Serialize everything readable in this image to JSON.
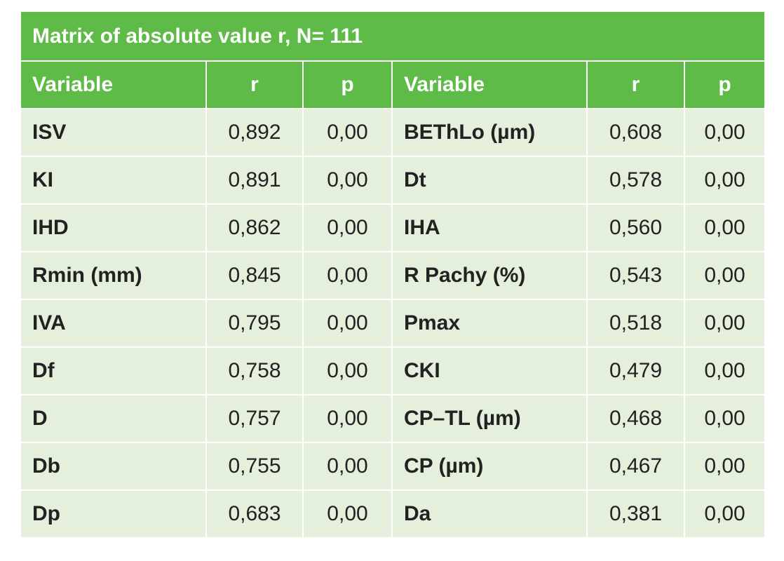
{
  "table": {
    "title": "Matrix of absolute value r, N= 111",
    "header": [
      "Variable",
      "r",
      "p",
      "Variable",
      "r",
      "p"
    ],
    "rows": [
      [
        "ISV",
        "0,892",
        "0,00",
        "BEThLo (µm)",
        "0,608",
        "0,00"
      ],
      [
        "KI",
        "0,891",
        "0,00",
        "Dt",
        "0,578",
        "0,00"
      ],
      [
        "IHD",
        "0,862",
        "0,00",
        "IHA",
        "0,560",
        "0,00"
      ],
      [
        "Rmin (mm)",
        "0,845",
        "0,00",
        "R Pachy (%)",
        "0,543",
        "0,00"
      ],
      [
        "IVA",
        "0,795",
        "0,00",
        "Pmax",
        "0,518",
        "0,00"
      ],
      [
        "Df",
        "0,758",
        "0,00",
        "CKI",
        "0,479",
        "0,00"
      ],
      [
        "D",
        "0,757",
        "0,00",
        "CP–TL (µm)",
        "0,468",
        "0,00"
      ],
      [
        "Db",
        "0,755",
        "0,00",
        "CP (µm)",
        "0,467",
        "0,00"
      ],
      [
        "Dp",
        "0,683",
        "0,00",
        "Da",
        "0,381",
        "0,00"
      ]
    ]
  }
}
